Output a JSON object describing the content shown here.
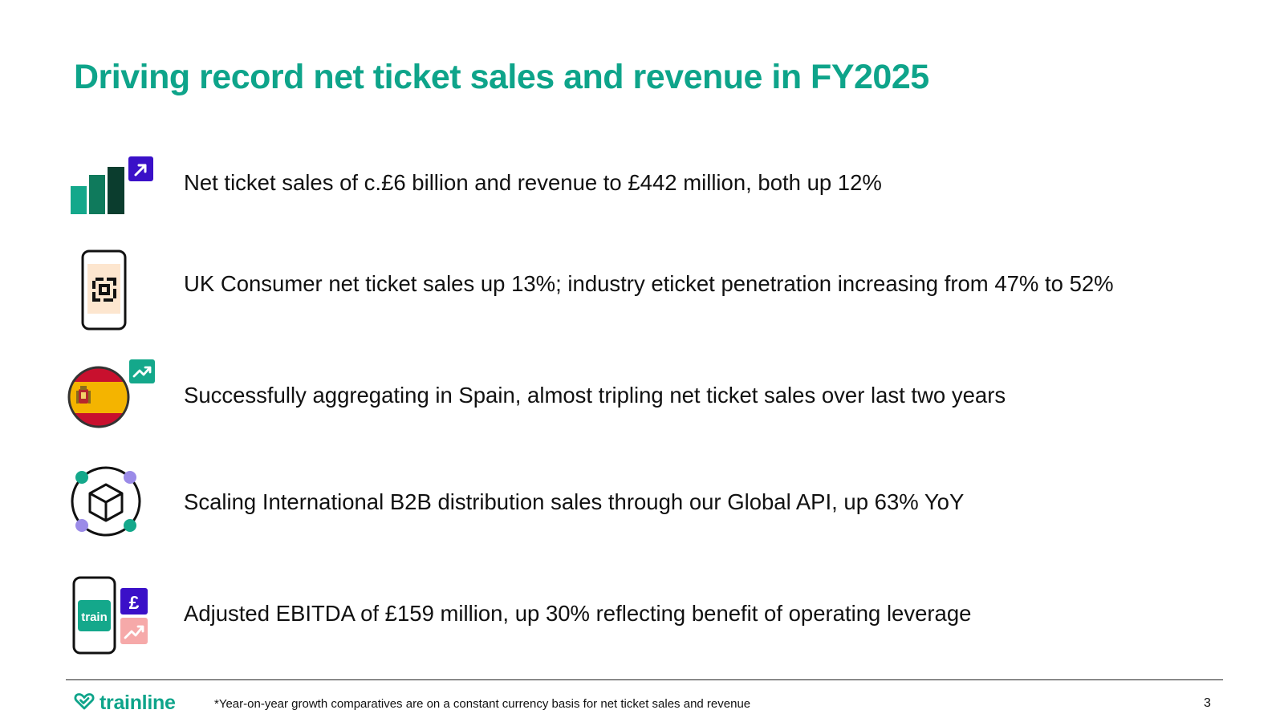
{
  "title": "Driving record net ticket sales and revenue in FY2025",
  "bullets": [
    {
      "icon": "bar-chart-growth-icon",
      "text": "Net ticket sales of c.£6 billion and revenue to £442 million, both up 12%"
    },
    {
      "icon": "phone-eticket-icon",
      "text": "UK Consumer net ticket sales up 13%; industry eticket penetration increasing from 47% to 52%"
    },
    {
      "icon": "spain-flag-growth-icon",
      "text": "Successfully aggregating in Spain, almost tripling net ticket sales over last two years"
    },
    {
      "icon": "global-api-cube-icon",
      "text": "Scaling International B2B distribution sales through our Global API, up 63% YoY"
    },
    {
      "icon": "phone-pound-growth-icon",
      "text": "Adjusted EBITDA of £159 million, up 30% reflecting benefit of operating leverage"
    }
  ],
  "icon_labels": {
    "phone_app": "train",
    "pound": "£"
  },
  "footer": {
    "brand": "trainline",
    "footnote": "*Year-on-year growth comparatives are on a constant currency basis for net ticket sales and revenue",
    "page_number": "3"
  },
  "colors": {
    "brand_green": "#0ea48a",
    "dark_green": "#0b3d2e",
    "purple": "#3a10c8",
    "peach": "#fde6cf",
    "pink": "#f6a9a9",
    "lilac": "#9b8be8"
  }
}
